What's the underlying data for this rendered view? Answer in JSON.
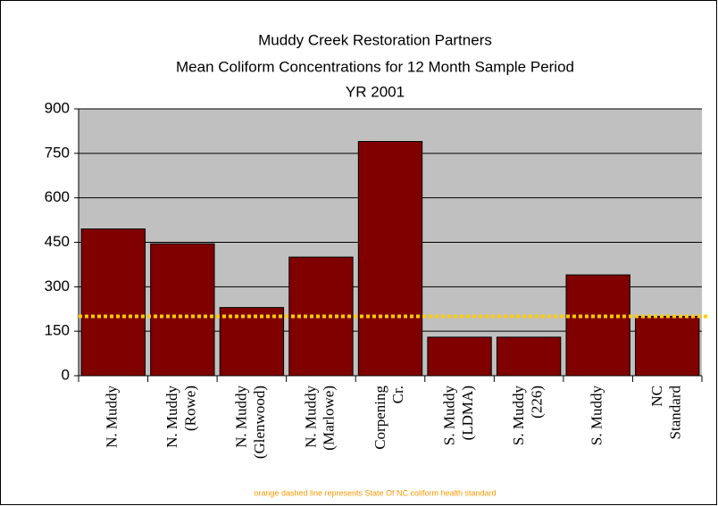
{
  "chart_data": {
    "type": "bar",
    "title": "Muddy Creek Restoration Partners",
    "subtitle": "Mean Coliform Concentrations for 12 Month Sample Period",
    "subtitle2": "YR 2001",
    "categories": [
      "N. Muddy",
      "N. Muddy\n(Rowe)",
      "N. Muddy\n(Glenwood)",
      "N. Muddy\n(Marlowe)",
      "Corpening\nCr.",
      "S. Muddy\n(LDMA)",
      "S. Muddy\n(226)",
      "S. Muddy",
      "NC\nStandard"
    ],
    "values": [
      495,
      445,
      230,
      400,
      790,
      130,
      130,
      340,
      200
    ],
    "color": "#800000",
    "ylim": [
      0,
      900
    ],
    "yticks": [
      0,
      150,
      300,
      450,
      600,
      750,
      900
    ],
    "grid": true,
    "plot_background": "#c0c0c0",
    "reference_line": {
      "value": 200,
      "color": "#ffcc00"
    },
    "note": "orange dashed line represents State Of NC coliform health standard"
  }
}
